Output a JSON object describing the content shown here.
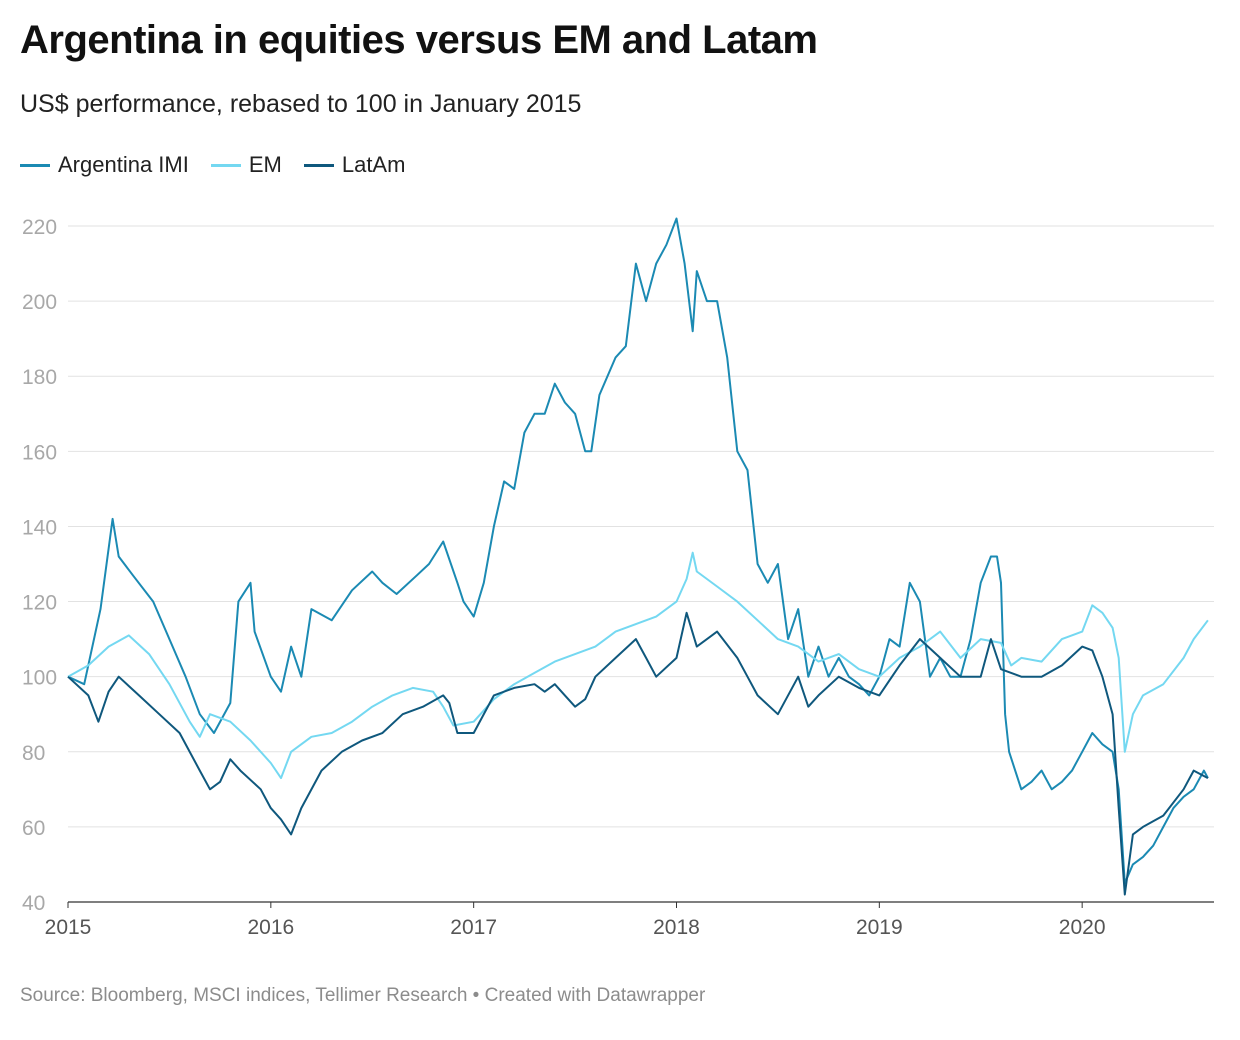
{
  "header": {
    "title": "Argentina in equities versus EM and Latam",
    "subtitle": "US$ performance, rebased to 100 in January 2015"
  },
  "footer": {
    "source": "Source: Bloomberg, MSCI indices, Tellimer Research",
    "separator": " • ",
    "credit": "Created with Datawrapper"
  },
  "colors": {
    "argentina": "#1b8ab3",
    "em": "#74d8f1",
    "latam": "#0f587d",
    "grid": "#e2e2e2",
    "axis": "#333333"
  },
  "chart_data": {
    "type": "line",
    "title": "Argentina in equities versus EM and Latam",
    "subtitle": "US$ performance, rebased to 100 in January 2015",
    "xlabel": "",
    "ylabel": "",
    "xlim": [
      2015.0,
      2020.65
    ],
    "ylim": [
      40,
      225
    ],
    "y_ticks": [
      40,
      60,
      80,
      100,
      120,
      140,
      160,
      180,
      200,
      220
    ],
    "x_ticks": [
      2015,
      2016,
      2017,
      2018,
      2019,
      2020
    ],
    "x_tick_labels": [
      "2015",
      "2016",
      "2017",
      "2018",
      "2019",
      "2020"
    ],
    "grid": true,
    "legend": "top-left",
    "series": [
      {
        "name": "Argentina IMI",
        "x": [
          2015.0,
          2015.08,
          2015.16,
          2015.22,
          2015.25,
          2015.32,
          2015.42,
          2015.5,
          2015.58,
          2015.65,
          2015.72,
          2015.8,
          2015.84,
          2015.9,
          2015.92,
          2016.0,
          2016.05,
          2016.1,
          2016.15,
          2016.2,
          2016.3,
          2016.4,
          2016.5,
          2016.55,
          2016.62,
          2016.72,
          2016.78,
          2016.85,
          2016.92,
          2016.95,
          2017.0,
          2017.05,
          2017.1,
          2017.15,
          2017.2,
          2017.25,
          2017.3,
          2017.35,
          2017.4,
          2017.45,
          2017.5,
          2017.55,
          2017.58,
          2017.62,
          2017.7,
          2017.75,
          2017.8,
          2017.85,
          2017.9,
          2017.95,
          2018.0,
          2018.04,
          2018.08,
          2018.1,
          2018.15,
          2018.2,
          2018.25,
          2018.3,
          2018.35,
          2018.4,
          2018.45,
          2018.5,
          2018.55,
          2018.6,
          2018.65,
          2018.7,
          2018.75,
          2018.8,
          2018.85,
          2018.9,
          2018.95,
          2019.0,
          2019.05,
          2019.1,
          2019.15,
          2019.2,
          2019.25,
          2019.3,
          2019.35,
          2019.4,
          2019.45,
          2019.5,
          2019.55,
          2019.58,
          2019.6,
          2019.62,
          2019.64,
          2019.7,
          2019.75,
          2019.8,
          2019.85,
          2019.9,
          2019.95,
          2020.0,
          2020.05,
          2020.1,
          2020.15,
          2020.18,
          2020.21,
          2020.25,
          2020.3,
          2020.35,
          2020.4,
          2020.45,
          2020.5,
          2020.55,
          2020.6,
          2020.62
        ],
        "y": [
          100,
          98,
          118,
          142,
          132,
          127,
          120,
          110,
          100,
          90,
          85,
          93,
          120,
          125,
          112,
          100,
          96,
          108,
          100,
          118,
          115,
          123,
          128,
          125,
          122,
          127,
          130,
          136,
          125,
          120,
          116,
          125,
          140,
          152,
          150,
          165,
          170,
          170,
          178,
          173,
          170,
          160,
          160,
          175,
          185,
          188,
          210,
          200,
          210,
          215,
          222,
          210,
          192,
          208,
          200,
          200,
          185,
          160,
          155,
          130,
          125,
          130,
          110,
          118,
          100,
          108,
          100,
          105,
          100,
          98,
          95,
          100,
          110,
          108,
          125,
          120,
          100,
          105,
          100,
          100,
          110,
          125,
          132,
          132,
          125,
          90,
          80,
          70,
          72,
          75,
          70,
          72,
          75,
          80,
          85,
          82,
          80,
          70,
          45,
          50,
          52,
          55,
          60,
          65,
          68,
          70,
          75,
          73
        ]
      },
      {
        "name": "EM",
        "x": [
          2015.0,
          2015.1,
          2015.2,
          2015.3,
          2015.4,
          2015.5,
          2015.6,
          2015.65,
          2015.7,
          2015.8,
          2015.9,
          2016.0,
          2016.05,
          2016.1,
          2016.2,
          2016.3,
          2016.4,
          2016.5,
          2016.6,
          2016.7,
          2016.8,
          2016.85,
          2016.9,
          2017.0,
          2017.1,
          2017.2,
          2017.3,
          2017.4,
          2017.5,
          2017.6,
          2017.7,
          2017.8,
          2017.9,
          2018.0,
          2018.05,
          2018.08,
          2018.1,
          2018.2,
          2018.3,
          2018.4,
          2018.5,
          2018.6,
          2018.7,
          2018.8,
          2018.9,
          2019.0,
          2019.1,
          2019.2,
          2019.3,
          2019.4,
          2019.5,
          2019.6,
          2019.65,
          2019.7,
          2019.8,
          2019.9,
          2020.0,
          2020.05,
          2020.1,
          2020.15,
          2020.18,
          2020.21,
          2020.25,
          2020.3,
          2020.4,
          2020.5,
          2020.55,
          2020.62
        ],
        "y": [
          100,
          103,
          108,
          111,
          106,
          98,
          88,
          84,
          90,
          88,
          83,
          77,
          73,
          80,
          84,
          85,
          88,
          92,
          95,
          97,
          96,
          92,
          87,
          88,
          94,
          98,
          101,
          104,
          106,
          108,
          112,
          114,
          116,
          120,
          126,
          133,
          128,
          124,
          120,
          115,
          110,
          108,
          104,
          106,
          102,
          100,
          105,
          108,
          112,
          105,
          110,
          109,
          103,
          105,
          104,
          110,
          112,
          119,
          117,
          113,
          105,
          80,
          90,
          95,
          98,
          105,
          110,
          115
        ]
      },
      {
        "name": "LatAm",
        "x": [
          2015.0,
          2015.1,
          2015.15,
          2015.2,
          2015.25,
          2015.35,
          2015.45,
          2015.55,
          2015.65,
          2015.7,
          2015.75,
          2015.8,
          2015.85,
          2015.95,
          2016.0,
          2016.05,
          2016.1,
          2016.15,
          2016.25,
          2016.35,
          2016.45,
          2016.55,
          2016.65,
          2016.75,
          2016.85,
          2016.88,
          2016.92,
          2017.0,
          2017.1,
          2017.2,
          2017.3,
          2017.35,
          2017.4,
          2017.45,
          2017.5,
          2017.55,
          2017.6,
          2017.7,
          2017.8,
          2017.85,
          2017.9,
          2018.0,
          2018.05,
          2018.1,
          2018.2,
          2018.3,
          2018.35,
          2018.4,
          2018.5,
          2018.6,
          2018.65,
          2018.7,
          2018.8,
          2018.9,
          2019.0,
          2019.1,
          2019.2,
          2019.3,
          2019.4,
          2019.5,
          2019.55,
          2019.6,
          2019.7,
          2019.8,
          2019.9,
          2020.0,
          2020.05,
          2020.1,
          2020.15,
          2020.18,
          2020.21,
          2020.25,
          2020.3,
          2020.4,
          2020.5,
          2020.55,
          2020.62
        ],
        "y": [
          100,
          95,
          88,
          96,
          100,
          95,
          90,
          85,
          75,
          70,
          72,
          78,
          75,
          70,
          65,
          62,
          58,
          65,
          75,
          80,
          83,
          85,
          90,
          92,
          95,
          93,
          85,
          85,
          95,
          97,
          98,
          96,
          98,
          95,
          92,
          94,
          100,
          105,
          110,
          105,
          100,
          105,
          117,
          108,
          112,
          105,
          100,
          95,
          90,
          100,
          92,
          95,
          100,
          97,
          95,
          103,
          110,
          105,
          100,
          100,
          110,
          102,
          100,
          100,
          103,
          108,
          107,
          100,
          90,
          65,
          42,
          58,
          60,
          63,
          70,
          75,
          73
        ]
      }
    ]
  }
}
